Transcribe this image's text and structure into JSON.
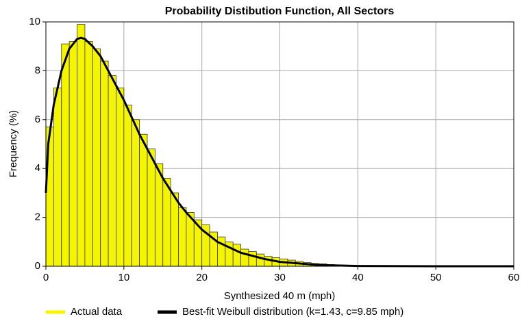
{
  "chart_data": {
    "type": "histogram",
    "title": "Probability Distibution Function, All Sectors",
    "xlabel": "Synthesized 40 m (mph)",
    "ylabel": "Frequency (%)",
    "xlim": [
      0,
      60
    ],
    "ylim": [
      0,
      10
    ],
    "xticks": [
      0,
      10,
      20,
      30,
      40,
      50,
      60
    ],
    "yticks": [
      0,
      2,
      4,
      6,
      8,
      10
    ],
    "grid": true,
    "legend": "bottom",
    "series": [
      {
        "name": "Actual data",
        "type": "histogram",
        "color": "#f5f500",
        "bins": [
          0,
          1,
          2,
          3,
          4,
          5,
          6,
          7,
          8,
          9,
          10,
          11,
          12,
          13,
          14,
          15,
          16,
          17,
          18,
          19,
          20,
          21,
          22,
          23,
          24,
          25,
          26,
          27,
          28,
          29,
          30,
          31,
          32,
          33,
          34,
          35,
          36,
          37,
          38,
          39,
          40
        ],
        "values": [
          5.7,
          7.3,
          9.1,
          9.2,
          9.9,
          9.2,
          8.9,
          8.4,
          7.8,
          7.3,
          6.6,
          6.0,
          5.4,
          4.8,
          4.2,
          3.6,
          3.0,
          2.4,
          2.2,
          1.9,
          1.7,
          1.4,
          1.2,
          1.0,
          0.9,
          0.7,
          0.6,
          0.5,
          0.4,
          0.35,
          0.3,
          0.25,
          0.2,
          0.15,
          0.12,
          0.1,
          0.07,
          0.05,
          0.04,
          0.03
        ]
      },
      {
        "name": "Best-fit Weibull distribution (k=1.43, c=9.85 mph)",
        "type": "line",
        "color": "#000000",
        "x": [
          0,
          0.3,
          1,
          2,
          3,
          4,
          4.5,
          5,
          6,
          7,
          8,
          9,
          10,
          11,
          12,
          13,
          14,
          15,
          16,
          17,
          18,
          20,
          22,
          25,
          28,
          30,
          35,
          40,
          50,
          60
        ],
        "values": [
          3.0,
          5.0,
          6.6,
          8.0,
          8.9,
          9.3,
          9.35,
          9.3,
          9.0,
          8.6,
          8.0,
          7.4,
          6.8,
          6.1,
          5.4,
          4.8,
          4.2,
          3.6,
          3.1,
          2.6,
          2.2,
          1.5,
          1.0,
          0.55,
          0.3,
          0.18,
          0.05,
          0.01,
          0,
          0
        ]
      }
    ]
  }
}
